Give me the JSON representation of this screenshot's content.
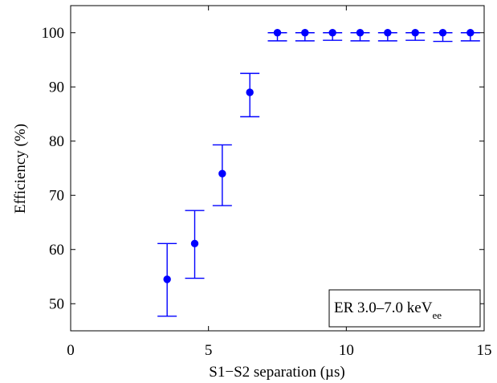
{
  "chart_data": {
    "type": "scatter",
    "xlabel": "S1−S2 separation (µs)",
    "ylabel": "Efficiency (%)",
    "xlim": [
      0,
      15
    ],
    "ylim": [
      45,
      105
    ],
    "xticks": [
      0,
      5,
      10,
      15
    ],
    "yticks": [
      50,
      60,
      70,
      80,
      90,
      100
    ],
    "grid": false,
    "legend_position": "bottom-right",
    "annotation": {
      "main": "ER 3.0–7.0 keV",
      "subscript": "ee"
    },
    "series": [
      {
        "color": "#0000ff",
        "marker": "circle",
        "error_bars": true,
        "points": [
          {
            "x": 3.5,
            "y": 54.5,
            "y_low": 47.7,
            "y_high": 61.1
          },
          {
            "x": 4.5,
            "y": 61.1,
            "y_low": 54.7,
            "y_high": 67.2
          },
          {
            "x": 5.5,
            "y": 74.0,
            "y_low": 68.1,
            "y_high": 79.3
          },
          {
            "x": 6.5,
            "y": 89.0,
            "y_low": 84.5,
            "y_high": 92.5
          },
          {
            "x": 7.5,
            "y": 100.0,
            "y_low": 98.5,
            "y_high": 100.0
          },
          {
            "x": 8.5,
            "y": 100.0,
            "y_low": 98.5,
            "y_high": 100.0
          },
          {
            "x": 9.5,
            "y": 100.0,
            "y_low": 98.6,
            "y_high": 100.0
          },
          {
            "x": 10.5,
            "y": 100.0,
            "y_low": 98.5,
            "y_high": 100.0
          },
          {
            "x": 11.5,
            "y": 100.0,
            "y_low": 98.5,
            "y_high": 100.0
          },
          {
            "x": 12.5,
            "y": 100.0,
            "y_low": 98.6,
            "y_high": 100.0
          },
          {
            "x": 13.5,
            "y": 100.0,
            "y_low": 98.4,
            "y_high": 100.0
          },
          {
            "x": 14.5,
            "y": 100.0,
            "y_low": 98.5,
            "y_high": 100.0
          }
        ]
      }
    ]
  }
}
